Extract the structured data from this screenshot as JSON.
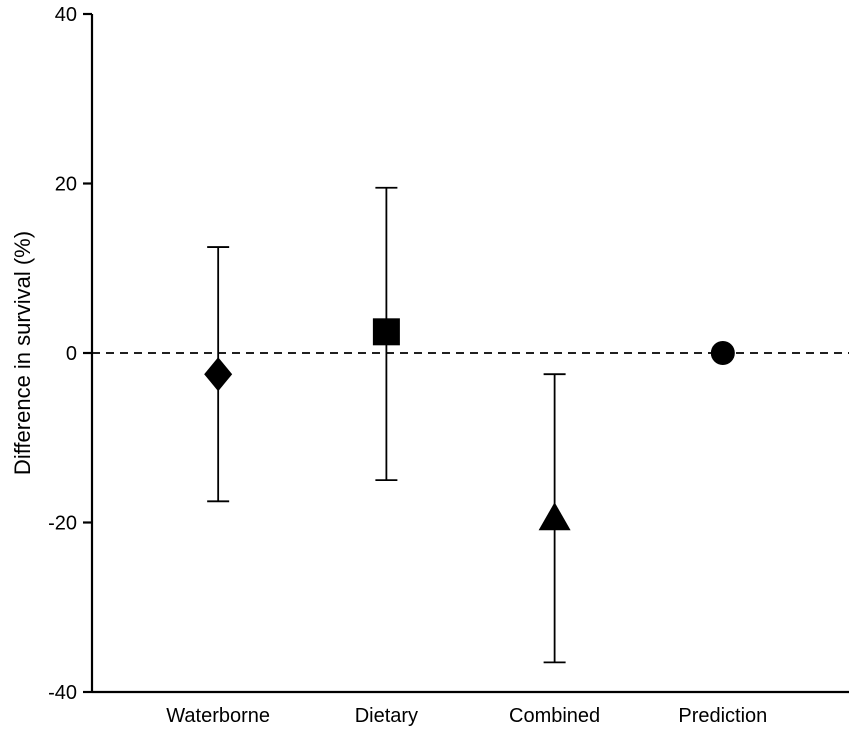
{
  "chart_data": {
    "type": "scatter",
    "title": "",
    "xlabel": "",
    "ylabel": "Difference in survival (%)",
    "ylim": [
      -40,
      40
    ],
    "yticks": [
      40,
      20,
      0,
      -20,
      -40
    ],
    "reference_line": 0,
    "grid": false,
    "legend": false,
    "categories": [
      "Waterborne",
      "Dietary",
      "Combined",
      "Prediction"
    ],
    "series": [
      {
        "name": "Waterborne",
        "marker": "diamond",
        "value": -2.5,
        "ci_low": -17.5,
        "ci_high": 12.5
      },
      {
        "name": "Dietary",
        "marker": "square",
        "value": 2.5,
        "ci_low": -15.0,
        "ci_high": 19.5
      },
      {
        "name": "Combined",
        "marker": "triangle",
        "value": -19.5,
        "ci_low": -36.5,
        "ci_high": -2.5
      },
      {
        "name": "Prediction",
        "marker": "circle",
        "value": 0,
        "ci_low": null,
        "ci_high": null
      }
    ]
  },
  "colors": {
    "marker": "#000000",
    "axis": "#000000",
    "background": "#ffffff"
  }
}
